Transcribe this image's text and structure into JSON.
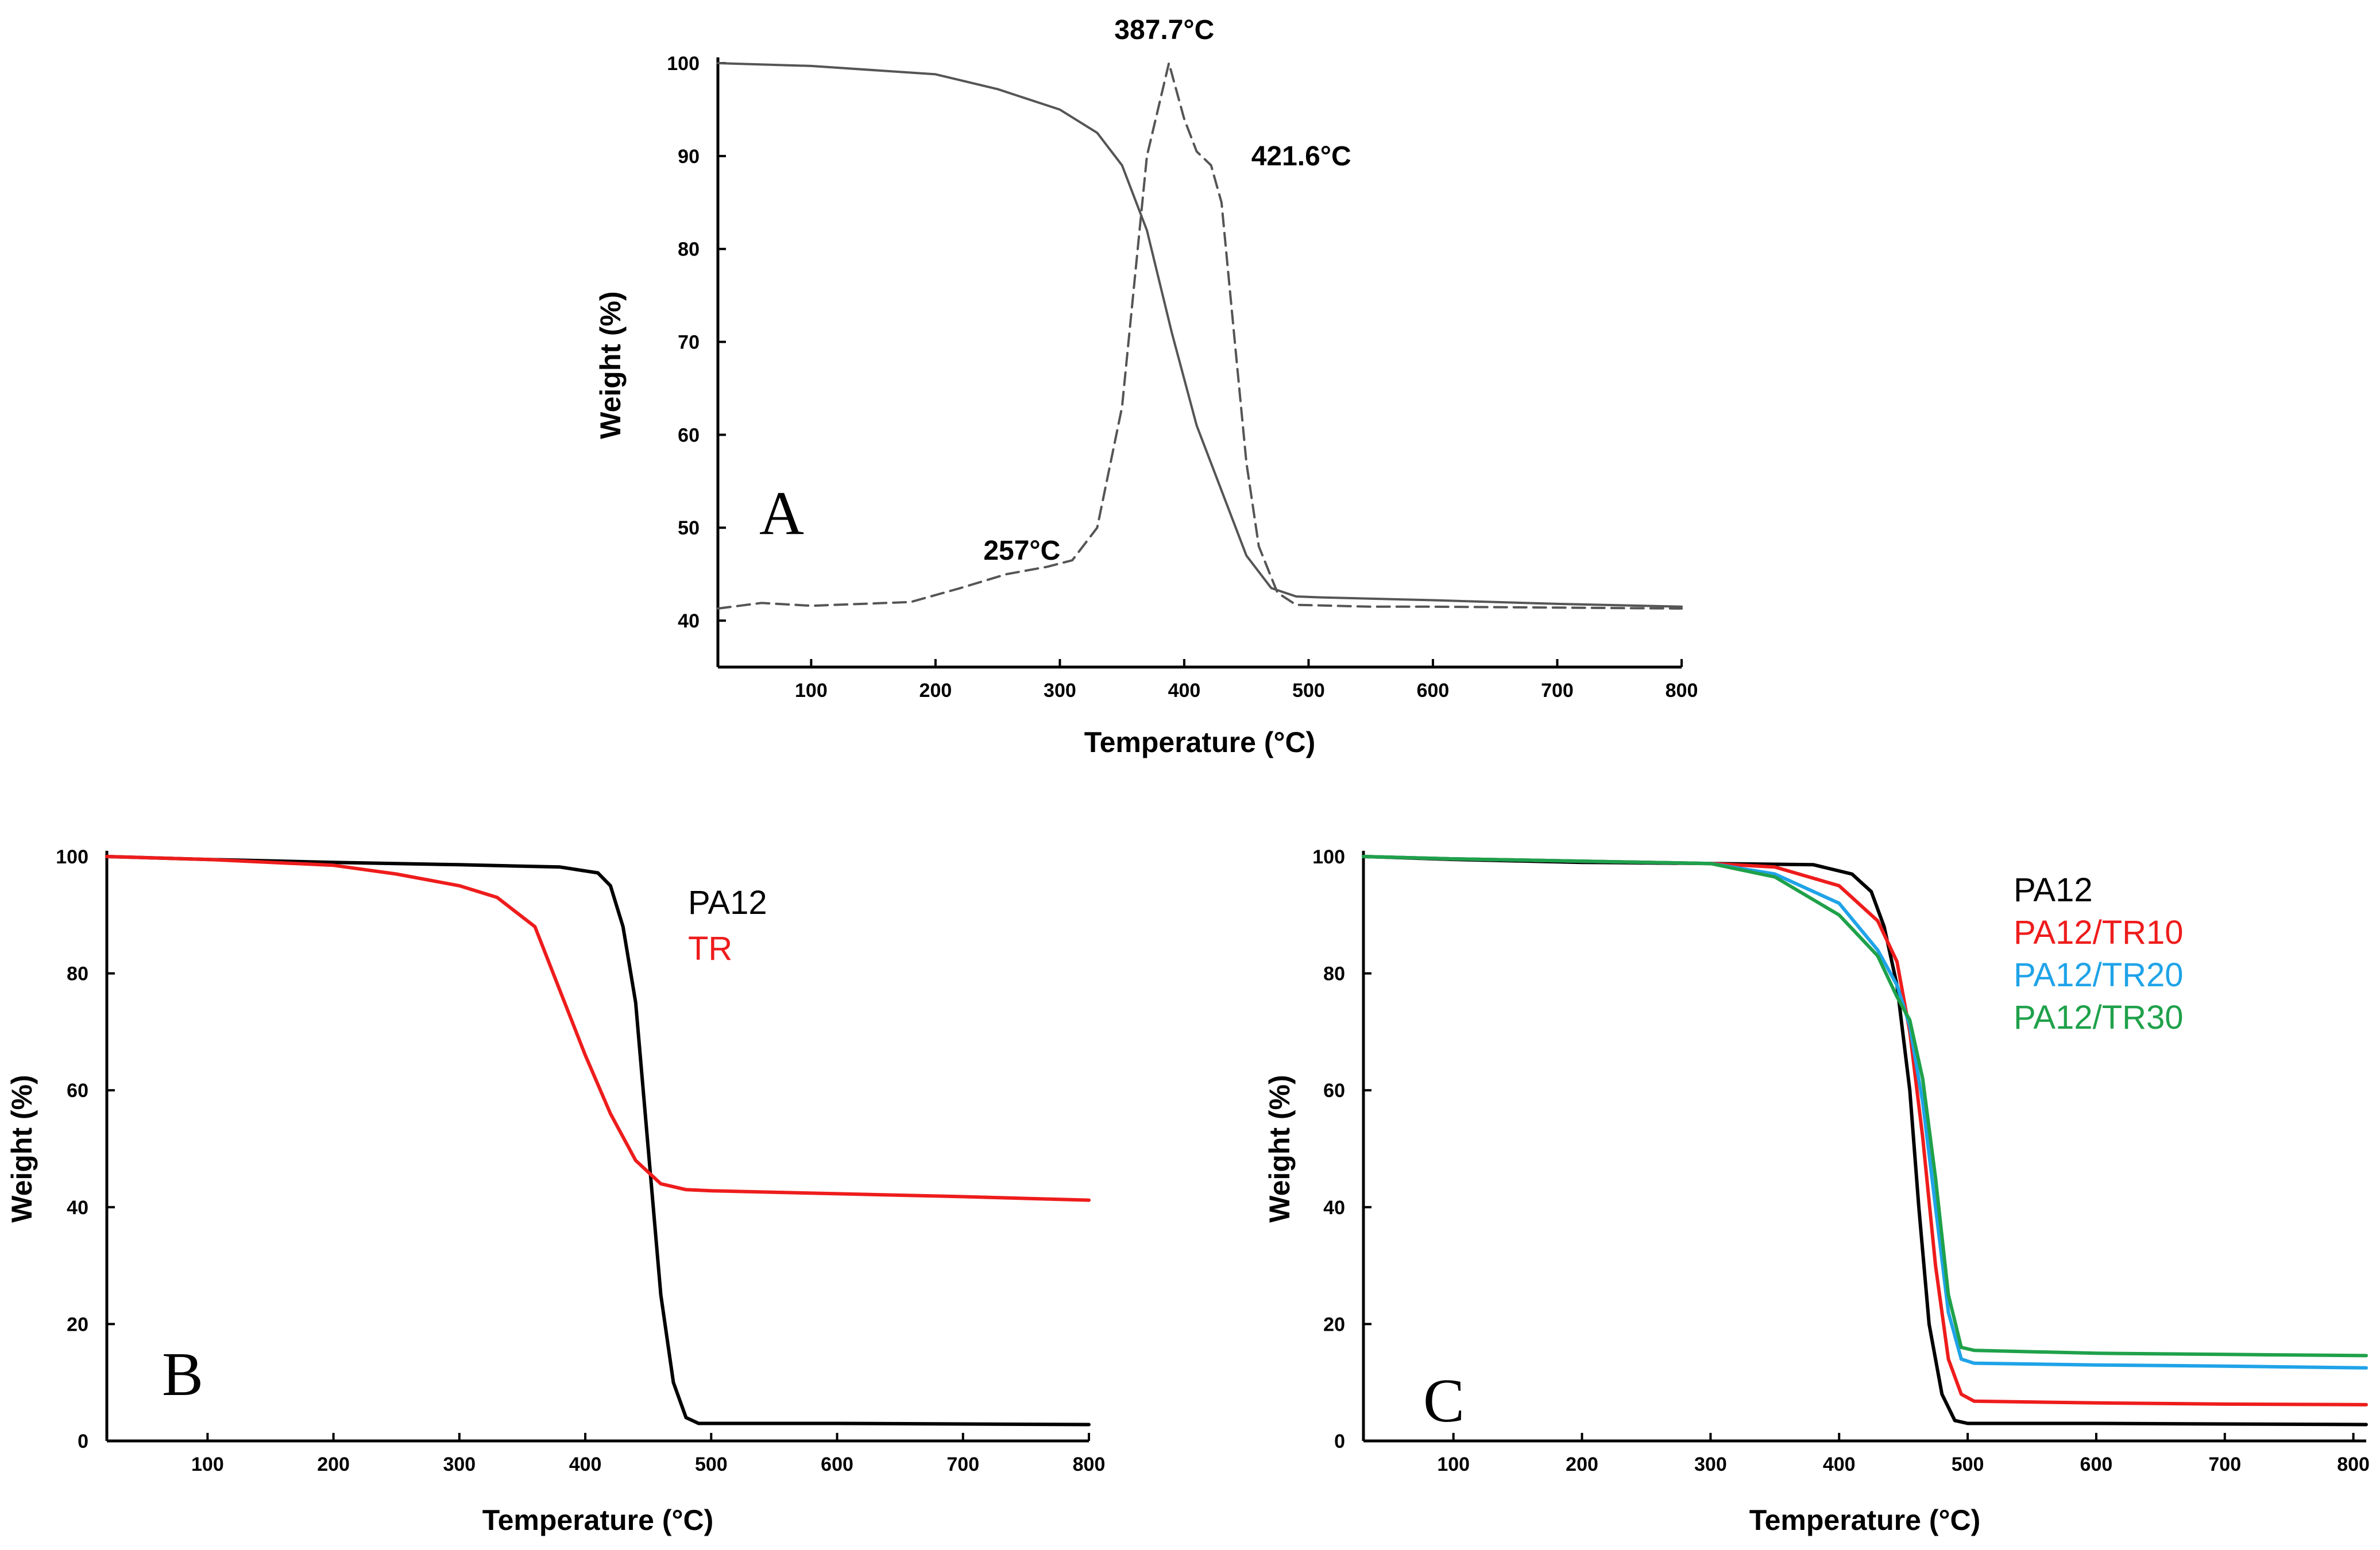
{
  "chart_data": [
    {
      "panel": "A",
      "type": "line",
      "panel_label": "A",
      "xlabel": "Temperature (°C)",
      "ylabel": "Weight (%)",
      "xlim": [
        25,
        800
      ],
      "ylim": [
        35,
        100
      ],
      "xticks": [
        100,
        200,
        300,
        400,
        500,
        600,
        700,
        800
      ],
      "yticks": [
        40,
        50,
        60,
        70,
        80,
        90,
        100
      ],
      "grid": false,
      "series": [
        {
          "style": "solid",
          "color": "#555555",
          "x": [
            25,
            100,
            200,
            250,
            300,
            330,
            350,
            370,
            390,
            410,
            430,
            450,
            470,
            490,
            510,
            600,
            700,
            800
          ],
          "y": [
            100,
            99.7,
            98.8,
            97.2,
            95.0,
            92.5,
            89.0,
            82.0,
            71.0,
            61.0,
            54.0,
            47.0,
            43.5,
            42.6,
            42.5,
            42.2,
            41.8,
            41.5
          ]
        },
        {
          "style": "dashed",
          "color": "#555555",
          "x": [
            25,
            60,
            100,
            180,
            220,
            257,
            290,
            310,
            330,
            350,
            370,
            387.7,
            400,
            410,
            421.6,
            430,
            440,
            450,
            460,
            475,
            490,
            550,
            600,
            700,
            800
          ],
          "y": [
            41.3,
            41.9,
            41.6,
            42.0,
            43.5,
            45.0,
            45.8,
            46.5,
            50.0,
            63.0,
            90.0,
            100,
            94.0,
            90.5,
            89.0,
            85.0,
            71.0,
            57.0,
            48.0,
            43.0,
            41.7,
            41.5,
            41.5,
            41.4,
            41.3
          ]
        }
      ],
      "annotations": [
        {
          "text": "387.7°C",
          "x": 387.7,
          "y": 100
        },
        {
          "text": "421.6°C",
          "x": 421.6,
          "y": 89
        },
        {
          "text": "257°C",
          "x": 257,
          "y": 45
        }
      ]
    },
    {
      "panel": "B",
      "type": "line",
      "panel_label": "B",
      "xlabel": "Temperature (°C)",
      "ylabel": "Weight (%)",
      "xlim": [
        20,
        800
      ],
      "ylim": [
        0,
        100
      ],
      "xticks": [
        100,
        200,
        300,
        400,
        500,
        600,
        700,
        800
      ],
      "yticks": [
        0,
        20,
        40,
        60,
        80,
        100
      ],
      "grid": false,
      "legend_position": "top-right",
      "series": [
        {
          "name": "PA12",
          "color": "#000000",
          "x": [
            20,
            100,
            200,
            300,
            380,
            410,
            420,
            430,
            440,
            450,
            460,
            470,
            480,
            490,
            500,
            600,
            700,
            800
          ],
          "y": [
            100,
            99.5,
            99,
            98.6,
            98.2,
            97.2,
            95.0,
            88.0,
            75.0,
            50.0,
            25.0,
            10.0,
            4.0,
            3.0,
            3.0,
            3.0,
            2.9,
            2.8
          ]
        },
        {
          "name": "TR",
          "color": "#ee1c1c",
          "x": [
            20,
            100,
            200,
            250,
            300,
            330,
            360,
            380,
            400,
            420,
            440,
            460,
            480,
            500,
            600,
            700,
            800
          ],
          "y": [
            100,
            99.5,
            98.5,
            97,
            95,
            93,
            88,
            77,
            66,
            56,
            48,
            44,
            43.0,
            42.8,
            42.3,
            41.8,
            41.2
          ]
        }
      ]
    },
    {
      "panel": "C",
      "type": "line",
      "panel_label": "C",
      "xlabel": "Temperature (°C)",
      "ylabel": "Weight (%)",
      "xlim": [
        30,
        810
      ],
      "ylim": [
        0,
        100
      ],
      "xticks": [
        100,
        200,
        300,
        400,
        500,
        600,
        700,
        800
      ],
      "yticks": [
        0,
        20,
        40,
        60,
        80,
        100
      ],
      "grid": false,
      "legend_position": "top-right",
      "series": [
        {
          "name": "PA12",
          "color": "#000000",
          "x": [
            30,
            100,
            200,
            300,
            380,
            410,
            425,
            435,
            445,
            455,
            462,
            470,
            480,
            490,
            500,
            600,
            700,
            810
          ],
          "y": [
            100,
            99.5,
            99,
            98.8,
            98.6,
            97.0,
            94.0,
            88.0,
            78.0,
            60.0,
            40.0,
            20.0,
            8.0,
            3.5,
            3.0,
            3.0,
            2.9,
            2.8
          ]
        },
        {
          "name": "PA12/TR10",
          "color": "#ee1c1c",
          "x": [
            30,
            100,
            200,
            300,
            350,
            400,
            430,
            445,
            455,
            465,
            475,
            485,
            495,
            505,
            600,
            700,
            810
          ],
          "y": [
            100,
            99.6,
            99.2,
            98.8,
            98.2,
            95.0,
            89.0,
            82.0,
            70.0,
            52.0,
            30.0,
            14.0,
            8.0,
            6.8,
            6.5,
            6.3,
            6.2
          ]
        },
        {
          "name": "PA12/TR20",
          "color": "#1fa3e8",
          "x": [
            30,
            100,
            200,
            300,
            350,
            400,
            430,
            445,
            455,
            465,
            475,
            485,
            495,
            505,
            600,
            700,
            810
          ],
          "y": [
            100,
            99.6,
            99.2,
            98.8,
            97.0,
            92.0,
            84.0,
            78.0,
            71.0,
            58.0,
            40.0,
            22.0,
            14.0,
            13.3,
            13.0,
            12.8,
            12.5
          ]
        },
        {
          "name": "PA12/TR30",
          "color": "#1fa14a",
          "x": [
            30,
            100,
            200,
            300,
            350,
            400,
            430,
            445,
            455,
            465,
            475,
            485,
            495,
            505,
            600,
            700,
            810
          ],
          "y": [
            100,
            99.6,
            99.2,
            98.8,
            96.5,
            90.0,
            83.0,
            76.0,
            72.0,
            62.0,
            45.0,
            25.0,
            16.0,
            15.5,
            15.0,
            14.8,
            14.6
          ]
        }
      ]
    }
  ]
}
